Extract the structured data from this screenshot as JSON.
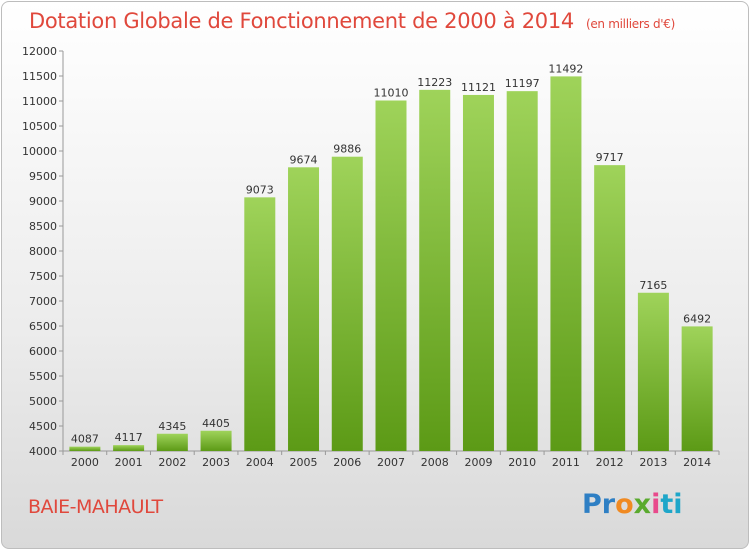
{
  "header": {
    "title": "Dotation Globale de Fonctionnement de 2000 à 2014",
    "unit": "(en milliers d'€)"
  },
  "footer": {
    "place": "BAIE-MAHAULT",
    "brand_parts": [
      "Pr",
      "o",
      "x",
      "i",
      "ti"
    ]
  },
  "colors": {
    "bar_top": "#9fd35a",
    "bar_bottom": "#5c9a16",
    "title": "#e0483c"
  },
  "chart_data": {
    "type": "bar",
    "title": "Dotation Globale de Fonctionnement de 2000 à 2014",
    "subtitle": "(en milliers d'€)",
    "xlabel": "",
    "ylabel": "",
    "categories": [
      "2000",
      "2001",
      "2002",
      "2003",
      "2004",
      "2005",
      "2006",
      "2007",
      "2008",
      "2009",
      "2010",
      "2011",
      "2012",
      "2013",
      "2014"
    ],
    "values": [
      4087,
      4117,
      4345,
      4405,
      9073,
      9674,
      9886,
      11010,
      11223,
      11121,
      11197,
      11492,
      9717,
      7165,
      6492
    ],
    "ylim": [
      4000,
      12000
    ],
    "yticks": [
      4000,
      4500,
      5000,
      5500,
      6000,
      6500,
      7000,
      7500,
      8000,
      8500,
      9000,
      9500,
      10000,
      10500,
      11000,
      11500,
      12000
    ],
    "grid": false,
    "data_labels": true
  }
}
